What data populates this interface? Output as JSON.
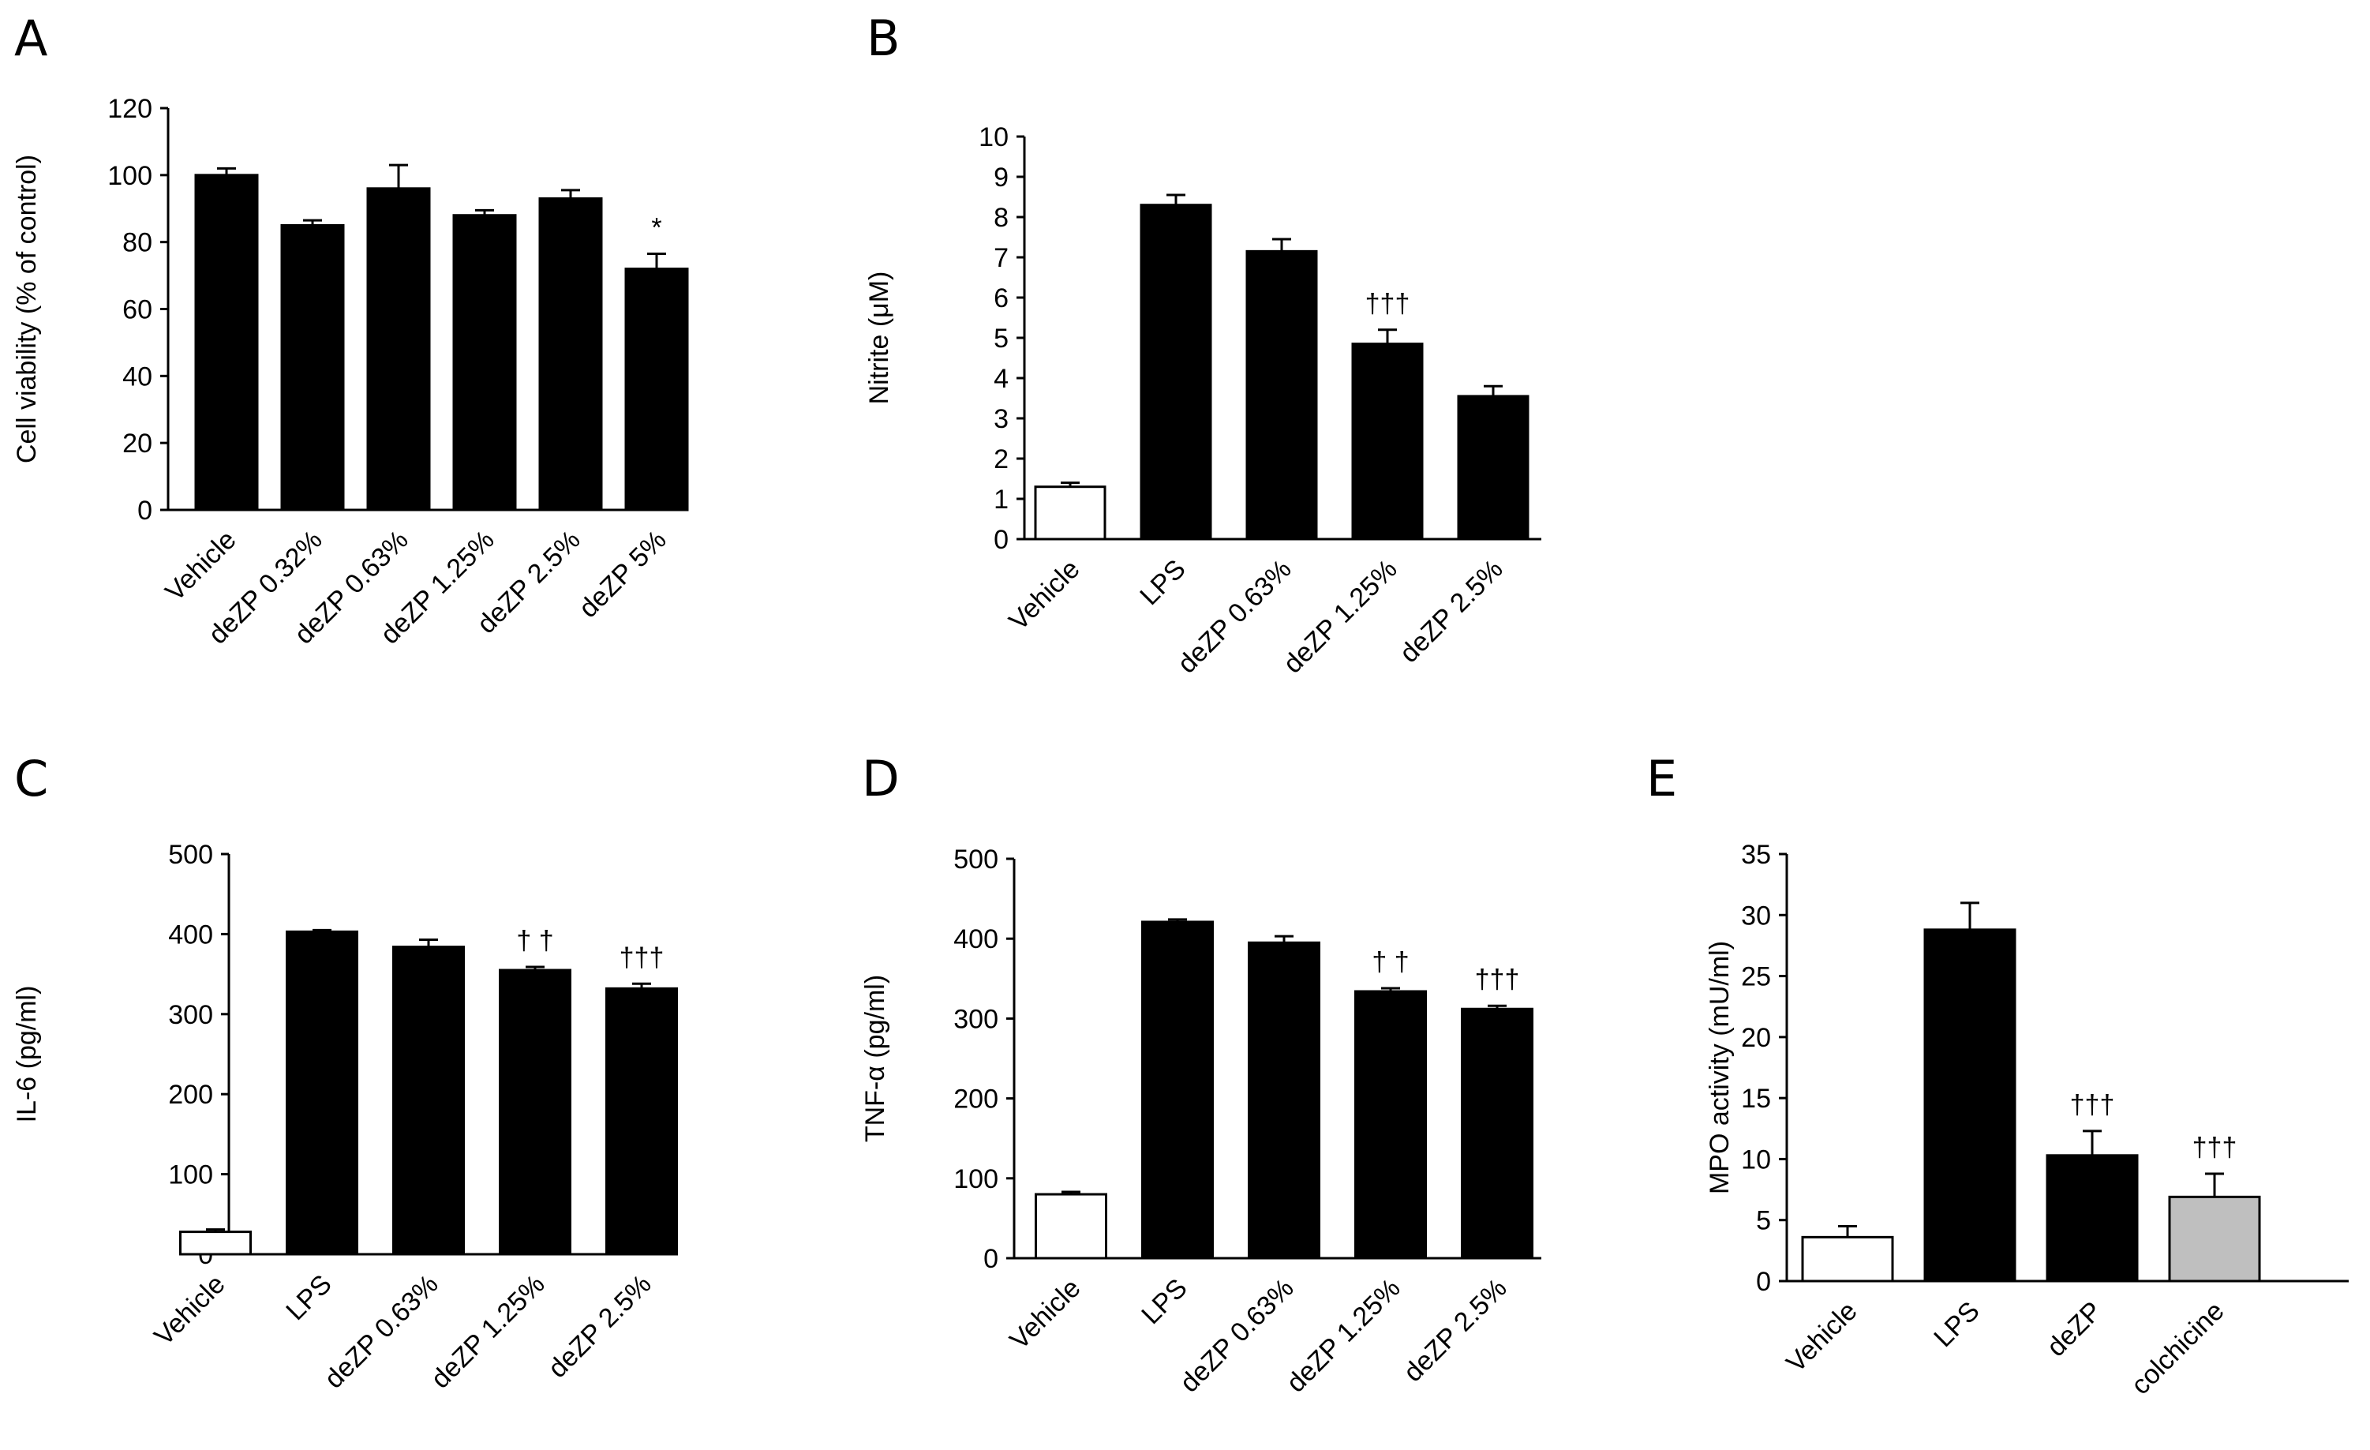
{
  "chart_data": [
    {
      "panel": "A",
      "type": "bar",
      "ylabel": "Cell viability (% of control)",
      "ylim": [
        0,
        120
      ],
      "yticks": [
        0,
        20,
        40,
        60,
        80,
        100,
        120
      ],
      "categories": [
        "Vehicle",
        "deZP 0.32%",
        "deZP 0.63%",
        "deZP 1.25%",
        "deZP 2.5%",
        "deZP 5%"
      ],
      "values": [
        100,
        85,
        96,
        88,
        93,
        72
      ],
      "errors": [
        2,
        1.5,
        7,
        1.5,
        2.5,
        4.5
      ],
      "fills": [
        "#000000",
        "#000000",
        "#000000",
        "#000000",
        "#000000",
        "#000000"
      ],
      "annotations": [
        "",
        "",
        "",
        "",
        "",
        "*"
      ]
    },
    {
      "panel": "B",
      "type": "bar",
      "ylabel": "Nitrite (μM)",
      "ylim": [
        0,
        10
      ],
      "yticks": [
        0,
        1,
        2,
        3,
        4,
        5,
        6,
        7,
        8,
        9,
        10
      ],
      "categories": [
        "Vehicle",
        "LPS",
        "deZP 0.63%",
        "deZP 1.25%",
        "deZP 2.5%"
      ],
      "values": [
        1.3,
        8.3,
        7.15,
        4.85,
        3.55
      ],
      "errors": [
        0.1,
        0.25,
        0.3,
        0.35,
        0.25
      ],
      "fills": [
        "#ffffff",
        "#000000",
        "#000000",
        "#000000",
        "#000000"
      ],
      "annotations": [
        "",
        "",
        "",
        "†††",
        ""
      ]
    },
    {
      "panel": "C",
      "type": "bar",
      "ylabel": "IL-6 (pg/ml)",
      "ylim": [
        0,
        500
      ],
      "yticks": [
        0,
        100,
        200,
        300,
        400,
        500
      ],
      "categories": [
        "Vehicle",
        "LPS",
        "deZP 0.63%",
        "deZP 1.25%",
        "deZP 2.5%"
      ],
      "values": [
        28,
        403,
        384,
        355,
        332
      ],
      "errors": [
        3,
        2,
        9,
        4,
        6
      ],
      "fills": [
        "#ffffff",
        "#000000",
        "#000000",
        "#000000",
        "#000000"
      ],
      "annotations": [
        "",
        "",
        "",
        "† †",
        "†††"
      ]
    },
    {
      "panel": "D",
      "type": "bar",
      "ylabel": "TNF-α (pg/ml)",
      "ylim": [
        0,
        500
      ],
      "yticks": [
        0,
        100,
        200,
        300,
        400,
        500
      ],
      "categories": [
        "Vehicle",
        "LPS",
        "deZP 0.63%",
        "deZP 1.25%",
        "deZP 2.5%"
      ],
      "values": [
        80,
        421,
        395,
        334,
        312
      ],
      "errors": [
        3,
        3,
        8,
        4,
        4
      ],
      "fills": [
        "#ffffff",
        "#000000",
        "#000000",
        "#000000",
        "#000000"
      ],
      "annotations": [
        "",
        "",
        "",
        "† †",
        "†††"
      ]
    },
    {
      "panel": "E",
      "type": "bar",
      "ylabel": "MPO activity (mU/ml)",
      "ylim": [
        0,
        35
      ],
      "yticks": [
        0,
        5,
        10,
        15,
        20,
        25,
        30,
        35
      ],
      "categories": [
        "Vehicle",
        "LPS",
        "deZP",
        "colchicine"
      ],
      "values": [
        3.6,
        28.8,
        10.3,
        6.9
      ],
      "errors": [
        0.9,
        2.2,
        2.0,
        1.9
      ],
      "fills": [
        "#ffffff",
        "#000000",
        "#000000",
        "#bfbfbf"
      ],
      "annotations": [
        "",
        "",
        "†††",
        "†††"
      ]
    }
  ]
}
